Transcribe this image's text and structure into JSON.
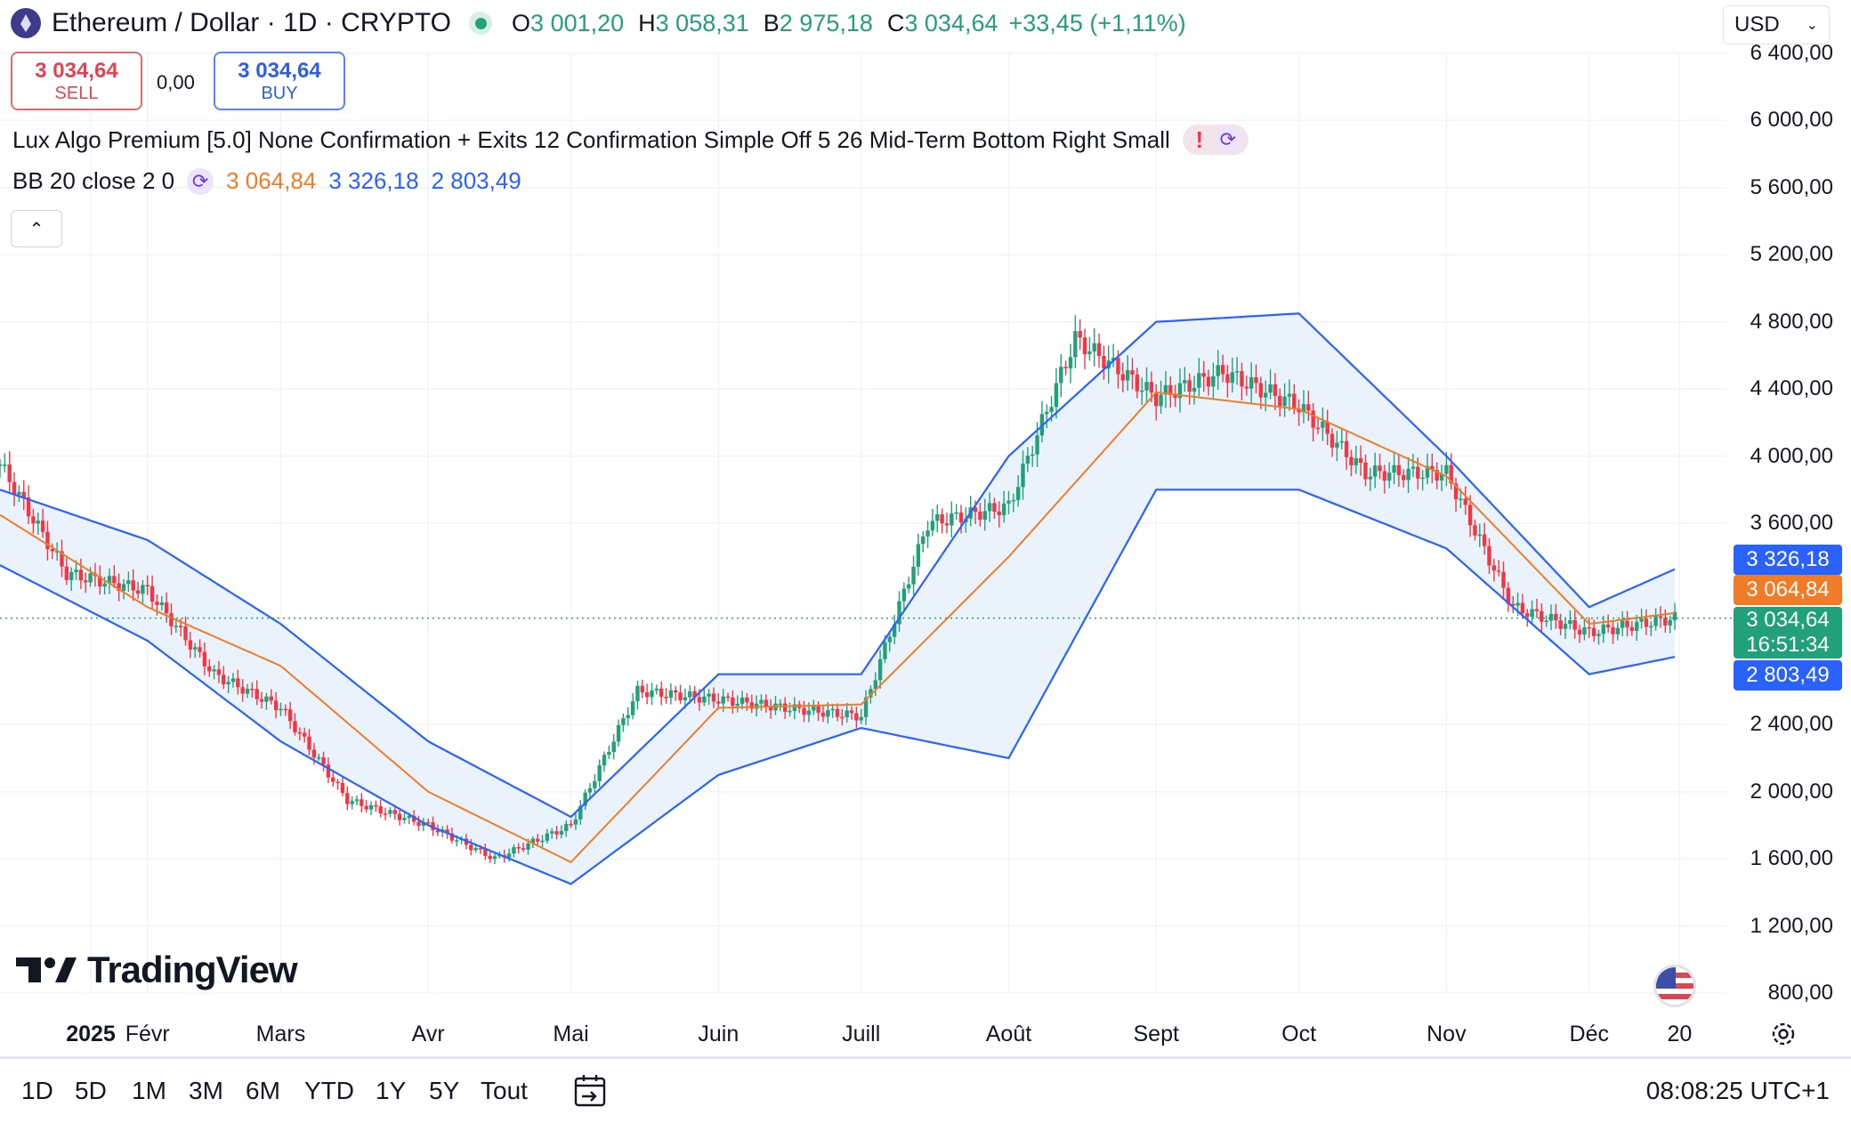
{
  "header": {
    "symbol_title": "Ethereum / Dollar · 1D · CRYPTO",
    "ohlc": [
      {
        "label": "O",
        "value": "3 001,20"
      },
      {
        "label": "H",
        "value": "3 058,31"
      },
      {
        "label": "B",
        "value": "2 975,18"
      },
      {
        "label": "C",
        "value": "3 034,64"
      }
    ],
    "change": "+33,45 (+1,11%)",
    "currency": "USD",
    "icons": {
      "symbol": "ethereum-icon",
      "status": "market-open-dot",
      "currency_chevron": "chevron-down-icon"
    }
  },
  "trade": {
    "sell_price": "3 034,64",
    "sell_label": "SELL",
    "spread": "0,00",
    "buy_price": "3 034,64",
    "buy_label": "BUY"
  },
  "indicators": {
    "lux_algo": "Lux Algo Premium [5.0] None Confirmation + Exits 12 Confirmation Simple Off 5 26 Mid-Term Bottom Right Small",
    "lux_warning": "!",
    "bb_label": "BB 20 close 2 0",
    "bb_basis": "3 064,84",
    "bb_upper": "3 326,18",
    "bb_lower": "2 803,49",
    "collapse_icon": "chevron-up-icon"
  },
  "price_tags": {
    "upper": "3 326,18",
    "basis": "3 064,84",
    "last": "3 034,64",
    "countdown": "16:51:34",
    "lower": "2 803,49"
  },
  "colors": {
    "up": "#22a07a",
    "down": "#f23645",
    "bb_band": "#2962ff",
    "bb_basis": "#f07c28",
    "bb_fill": "#eaf3fb",
    "last_price": "#22a07a"
  },
  "chart_data": {
    "type": "candlestick",
    "title": "Ethereum / Dollar · 1D · CRYPTO",
    "ylim": [
      800,
      6400
    ],
    "y_ticks": [
      "800,00",
      "1 200,00",
      "1 600,00",
      "2 000,00",
      "2 400,00",
      "3 600,00",
      "4 000,00",
      "4 400,00",
      "4 800,00",
      "5 200,00",
      "5 600,00",
      "6 000,00",
      "6 400,00"
    ],
    "x_ticks": [
      "2025",
      "Févr",
      "Mars",
      "Avr",
      "Mai",
      "Juin",
      "Juill",
      "Août",
      "Sept",
      "Oct",
      "Nov",
      "Déc",
      "20"
    ],
    "last_price": 3034.64,
    "series": [
      {
        "name": "BB upper",
        "x": [
          "2025-01-01",
          "2025-02-01",
          "2025-03-01",
          "2025-04-01",
          "2025-05-01",
          "2025-06-01",
          "2025-07-01",
          "2025-08-01",
          "2025-09-01",
          "2025-10-01",
          "2025-11-01",
          "2025-12-01",
          "2025-12-19"
        ],
        "values": [
          3800,
          3500,
          3000,
          2300,
          1850,
          2700,
          2700,
          4000,
          4800,
          4850,
          4000,
          3100,
          3326.18
        ]
      },
      {
        "name": "BB basis",
        "x": [
          "2025-01-01",
          "2025-02-01",
          "2025-03-01",
          "2025-04-01",
          "2025-05-01",
          "2025-06-01",
          "2025-07-01",
          "2025-08-01",
          "2025-09-01",
          "2025-10-01",
          "2025-11-01",
          "2025-12-01",
          "2025-12-19"
        ],
        "values": [
          3650,
          3100,
          2750,
          2000,
          1580,
          2500,
          2520,
          3400,
          4380,
          4280,
          3880,
          3000,
          3064.84
        ]
      },
      {
        "name": "BB lower",
        "x": [
          "2025-01-01",
          "2025-02-01",
          "2025-03-01",
          "2025-04-01",
          "2025-05-01",
          "2025-06-01",
          "2025-07-01",
          "2025-08-01",
          "2025-09-01",
          "2025-10-01",
          "2025-11-01",
          "2025-12-01",
          "2025-12-19"
        ],
        "values": [
          3350,
          2900,
          2300,
          1800,
          1450,
          2100,
          2380,
          2200,
          3800,
          3800,
          3450,
          2700,
          2803.49
        ]
      },
      {
        "name": "ETHUSD close",
        "x": [
          "2025-01-01",
          "2025-01-15",
          "2025-02-01",
          "2025-02-15",
          "2025-03-01",
          "2025-03-15",
          "2025-04-01",
          "2025-04-15",
          "2025-05-01",
          "2025-05-15",
          "2025-06-01",
          "2025-06-15",
          "2025-07-01",
          "2025-07-15",
          "2025-08-01",
          "2025-08-15",
          "2025-09-01",
          "2025-09-15",
          "2025-10-01",
          "2025-10-15",
          "2025-11-01",
          "2025-11-15",
          "2025-12-01",
          "2025-12-19"
        ],
        "values": [
          3950,
          3300,
          3200,
          2700,
          2500,
          1950,
          1800,
          1600,
          1800,
          2600,
          2550,
          2500,
          2450,
          3600,
          3700,
          4700,
          4350,
          4500,
          4300,
          3900,
          3900,
          3100,
          2950,
          3034.64
        ]
      }
    ]
  },
  "x_axis": {
    "settings_icon": "gear-icon"
  },
  "branding": {
    "logo_text": "TradingView",
    "logo_icon": "tradingview-logo-icon",
    "flag_icon": "us-flag-icon"
  },
  "bottom_bar": {
    "ranges": [
      "1D",
      "5D",
      "1M",
      "3M",
      "6M",
      "YTD",
      "1Y",
      "5Y",
      "Tout"
    ],
    "goto_icon": "calendar-goto-icon",
    "time": "08:08:25 UTC+1"
  }
}
